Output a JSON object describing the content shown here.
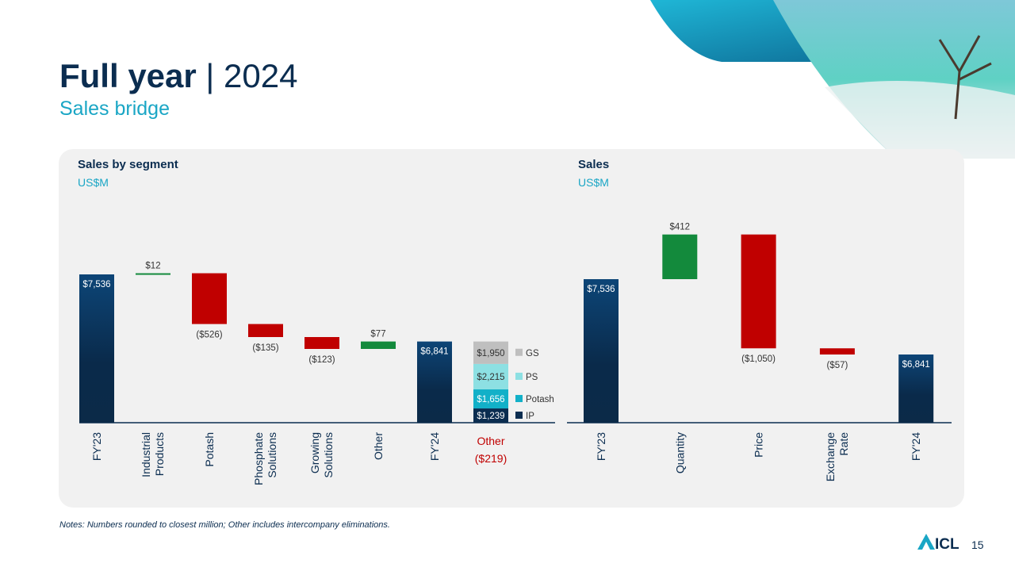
{
  "header": {
    "title": "Full year",
    "separator": "|",
    "year": "2024",
    "subtitle": "Sales bridge"
  },
  "colors": {
    "total": "#0b2d50",
    "increase": "#138a3c",
    "decrease": "#c00000",
    "gs": "#bfbfbf",
    "ps": "#8de0e3",
    "potash": "#12b0c8",
    "ip": "#0b2d50"
  },
  "chart_data": [
    {
      "type": "waterfall",
      "title": "Sales by segment",
      "unit": "US$M",
      "ylim": [
        6000,
        7600
      ],
      "items": [
        {
          "category": "FY'23",
          "kind": "total",
          "value": 7536,
          "label": "$7,536"
        },
        {
          "category": "Industrial Products",
          "kind": "delta",
          "value": 12,
          "label": "$12"
        },
        {
          "category": "Potash",
          "kind": "delta",
          "value": -526,
          "label": "($526)"
        },
        {
          "category": "Phosphate Solutions",
          "kind": "delta",
          "value": -135,
          "label": "($135)"
        },
        {
          "category": "Growing Solutions",
          "kind": "delta",
          "value": -123,
          "label": "($123)"
        },
        {
          "category": "Other",
          "kind": "delta",
          "value": 77,
          "label": "$77"
        },
        {
          "category": "FY'24",
          "kind": "total",
          "value": 6841,
          "label": "$6,841"
        }
      ],
      "stack": {
        "category": "Other",
        "category_value": "($219)",
        "segments": [
          {
            "name": "IP",
            "value": 1239,
            "label": "$1,239"
          },
          {
            "name": "Potash",
            "value": 1656,
            "label": "$1,656"
          },
          {
            "name": "PS",
            "value": 2215,
            "label": "$2,215"
          },
          {
            "name": "GS",
            "value": 1950,
            "label": "$1,950"
          }
        ]
      }
    },
    {
      "type": "waterfall",
      "title": "Sales",
      "unit": "US$M",
      "ylim": [
        6212,
        7600
      ],
      "items": [
        {
          "category": "FY'23",
          "kind": "total",
          "value": 7536,
          "label": "$7,536"
        },
        {
          "category": "Quantity",
          "kind": "delta",
          "value": 412,
          "label": "$412"
        },
        {
          "category": "Price",
          "kind": "delta",
          "value": -1050,
          "label": "($1,050)"
        },
        {
          "category": "Exchange Rate",
          "kind": "delta",
          "value": -57,
          "label": "($57)"
        },
        {
          "category": "FY'24",
          "kind": "total",
          "value": 6841,
          "label": "$6,841"
        }
      ]
    }
  ],
  "footer": {
    "note": "Notes: Numbers rounded to closest million; Other includes intercompany eliminations.",
    "logo": "ICL",
    "page": "15"
  }
}
